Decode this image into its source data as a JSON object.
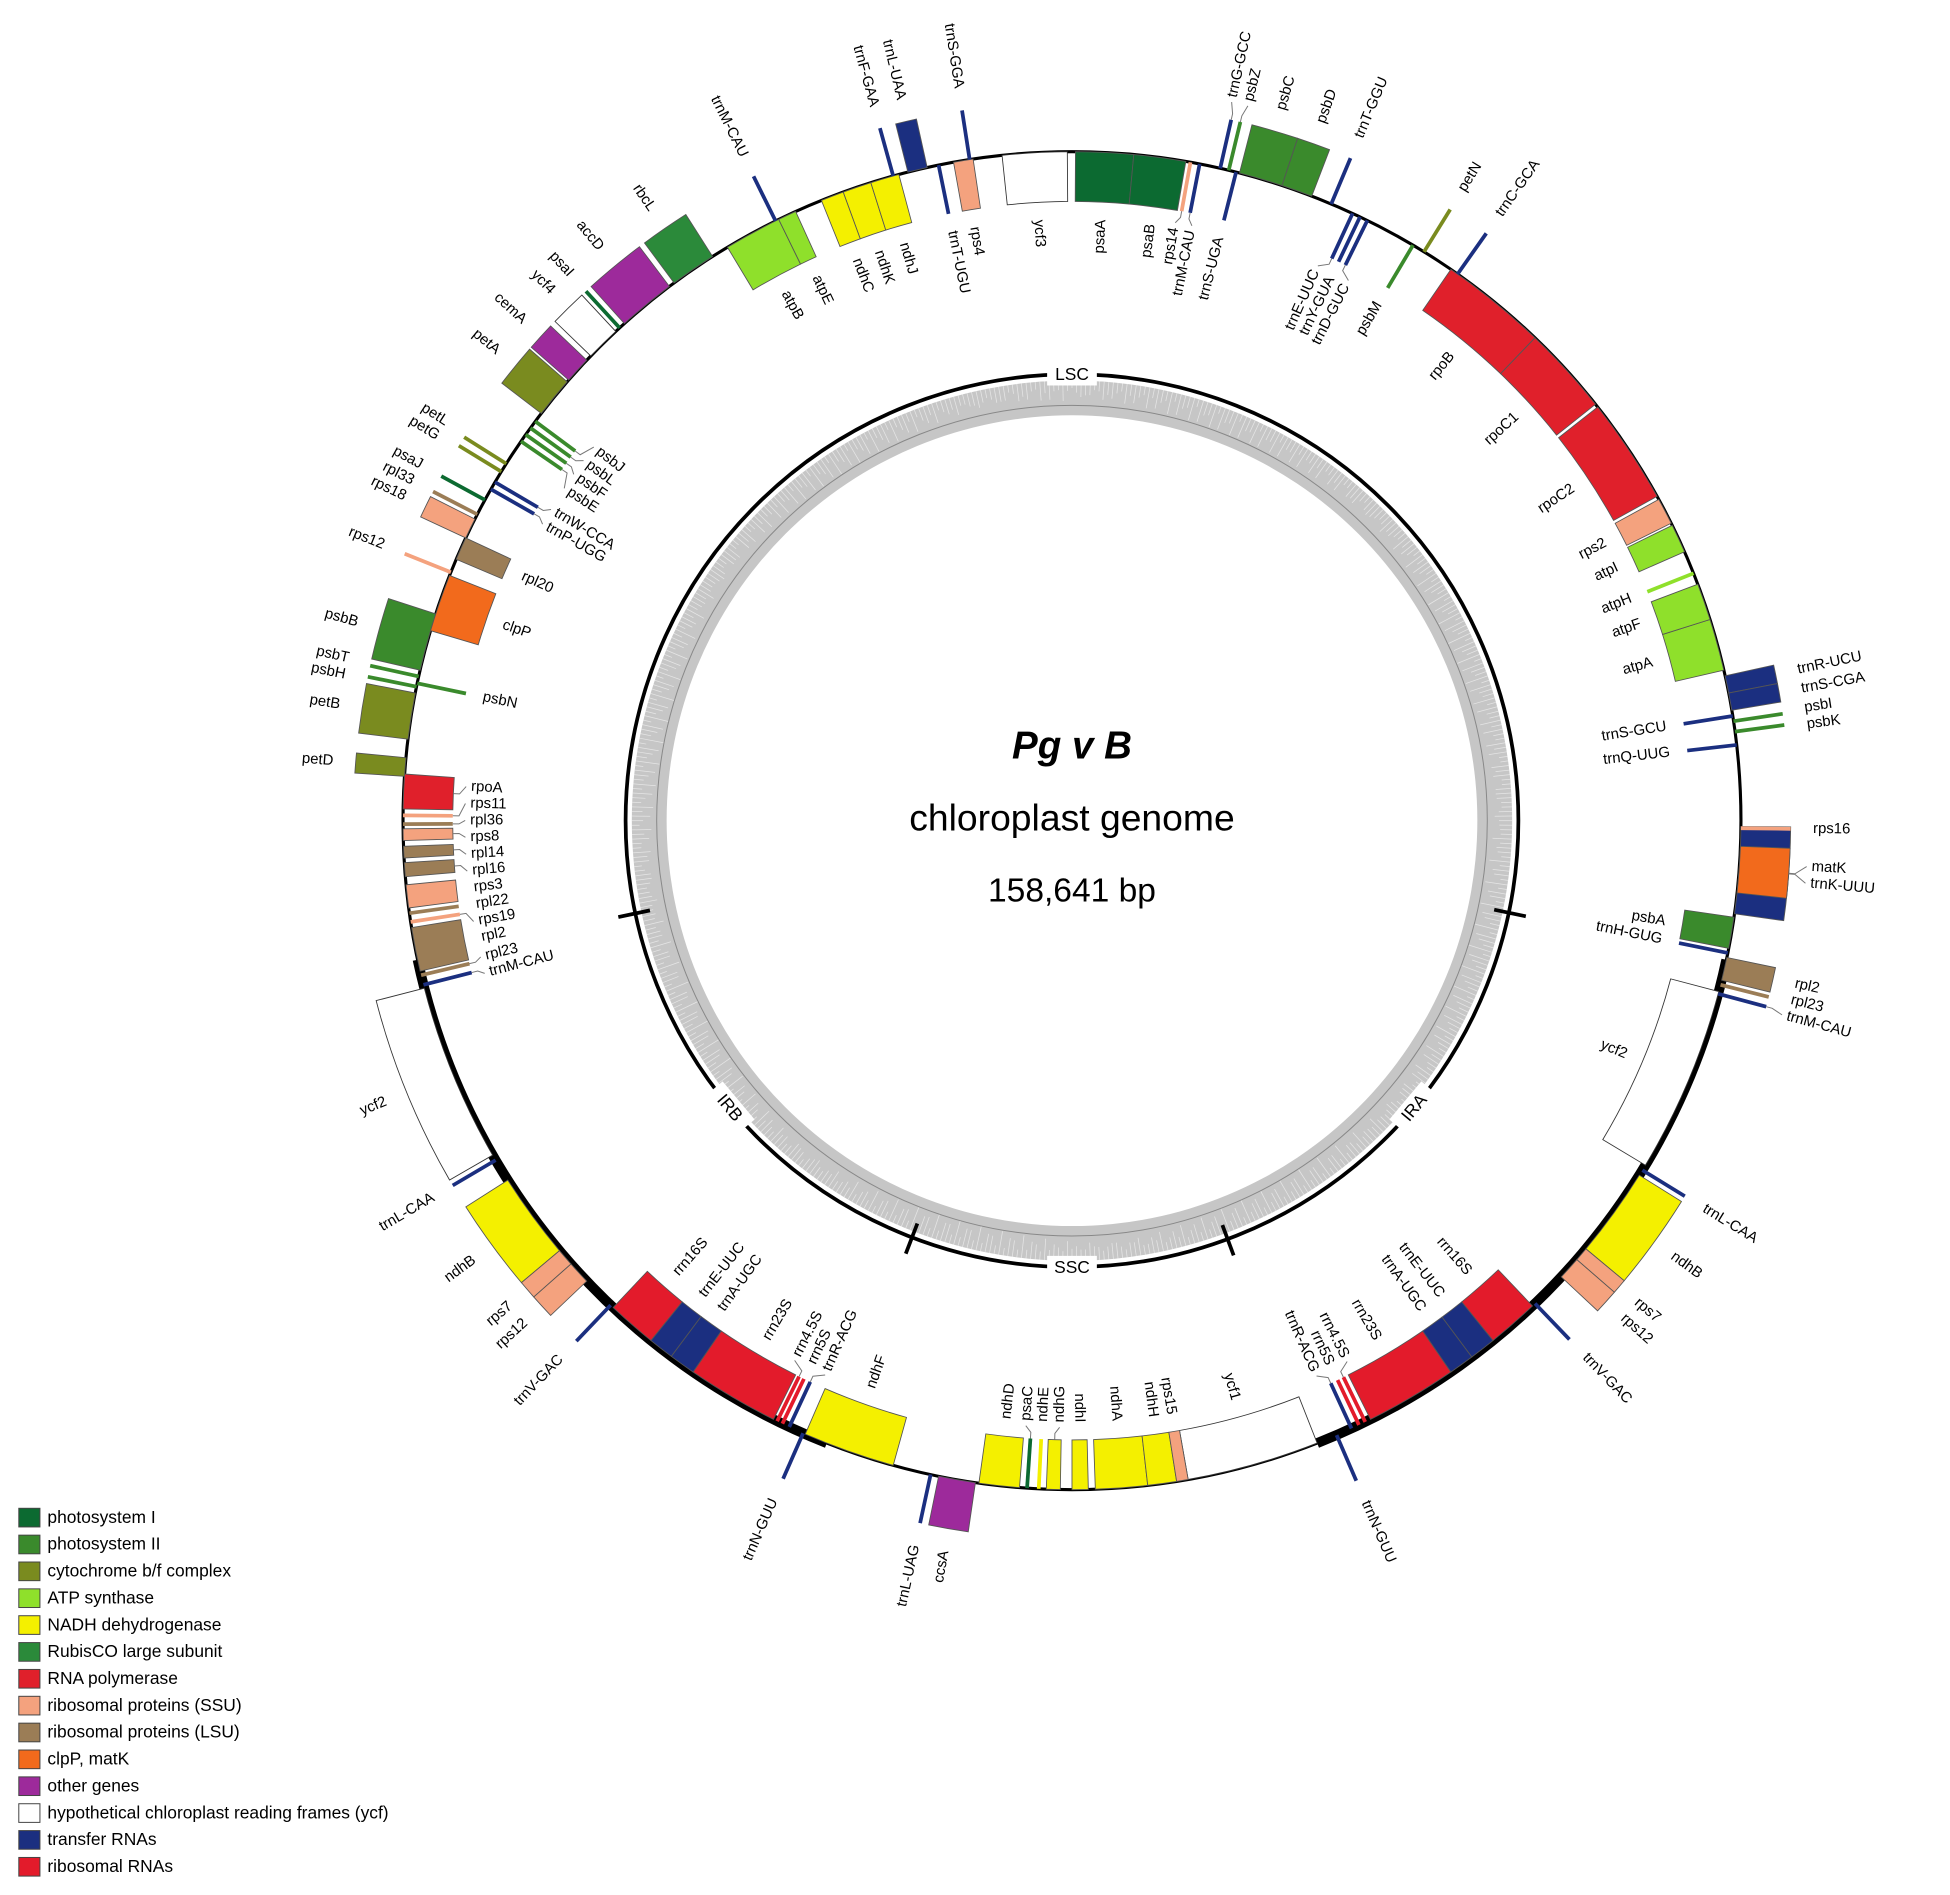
{
  "organism": "Pg v B",
  "title": "chloroplast genome",
  "length": "158,641 bp",
  "regions": [
    "LSC",
    "IRA",
    "SSC",
    "IRB"
  ],
  "legend": [
    {
      "label": "photosystem I",
      "color": "#0c6a31",
      "genes": [
        "psaA",
        "psaB",
        "psaC",
        "psaI",
        "psaJ"
      ]
    },
    {
      "label": "photosystem II",
      "color": "#3a8a2c",
      "genes": [
        "psbZ",
        "psbC",
        "psbD",
        "psbM",
        "psbI",
        "psbK",
        "psbA",
        "psbN",
        "psbH",
        "psbT",
        "psbB",
        "psbE",
        "psbF",
        "psbL",
        "psbJ"
      ]
    },
    {
      "label": "cytochrome b/f complex",
      "color": "#7a8b1f",
      "genes": [
        "petN",
        "petD",
        "petB",
        "petG",
        "petL",
        "petA"
      ]
    },
    {
      "label": "ATP synthase",
      "color": "#8fe02b",
      "genes": [
        "atpA",
        "atpF",
        "atpH",
        "atpI",
        "atpB",
        "atpE"
      ]
    },
    {
      "label": "NADH dehydrogenase",
      "color": "#f4f000",
      "genes": [
        "ndhB",
        "ndhI",
        "ndhA",
        "ndhH",
        "ndhG",
        "ndhE",
        "ndhD",
        "ndhF",
        "ndhB",
        "ndhC",
        "ndhK",
        "ndhJ"
      ]
    },
    {
      "label": "RubisCO large subunit",
      "color": "#2b8a3a",
      "genes": [
        "rbcL"
      ]
    },
    {
      "label": "RNA polymerase",
      "color": "#e0202b",
      "genes": [
        "rpoB",
        "rpoC1",
        "rpoC2",
        "rpoA"
      ]
    },
    {
      "label": "ribosomal proteins (SSU)",
      "color": "#f4a27e",
      "genes": [
        "rps14",
        "rps2",
        "rps16",
        "rps7",
        "rps12",
        "rps15",
        "rps12",
        "rps7",
        "rps19",
        "rps3",
        "rps8",
        "rps11",
        "rps12",
        "rps18",
        "rps4"
      ]
    },
    {
      "label": "ribosomal proteins (LSU)",
      "color": "#9b7d56",
      "genes": [
        "rpl2",
        "rpl23",
        "rpl23",
        "rpl2",
        "rpl22",
        "rpl16",
        "rpl14",
        "rpl36",
        "rpl20",
        "rpl33"
      ]
    },
    {
      "label": "clpP, matK",
      "color": "#f26a1c",
      "genes": [
        "matK",
        "clpP"
      ]
    },
    {
      "label": "other genes",
      "color": "#9d2a9b",
      "genes": [
        "ccsA",
        "cemA",
        "accD"
      ]
    },
    {
      "label": "hypothetical chloroplast reading frames (ycf)",
      "color": "#ffffff",
      "genes": [
        "ycf2",
        "ycf1",
        "ycf2",
        "ycf4",
        "ycf3"
      ]
    },
    {
      "label": "transfer RNAs",
      "color": "#1b2f80",
      "genes": [
        "trnM-CAU",
        "trnG-GCC",
        "trnS-UGA",
        "trnT-GGU",
        "trnE-UUC",
        "trnY-GUA",
        "trnD-GUC",
        "trnC-GCA",
        "trnR-UCU",
        "trnS-CGA",
        "trnS-GCU",
        "trnQ-UUG",
        "trnK-UUU",
        "trnH-GUG",
        "trnM-CAU",
        "trnL-CAA",
        "trnV-GAC",
        "trnA-UGC",
        "trnE-UUC",
        "trnR-ACG",
        "trnN-GUU",
        "trnL-UAG",
        "trnN-GUU",
        "trnR-ACG",
        "trnA-UGC",
        "trnE-UUC",
        "trnV-GAC",
        "trnL-CAA",
        "trnM-CAU",
        "trnP-UGG",
        "trnW-CCA",
        "trnM-CAU",
        "trnF-GAA",
        "trnL-UAA",
        "trnT-UGU",
        "trnS-GGA"
      ]
    },
    {
      "label": "ribosomal RNAs",
      "color": "#e31b2b",
      "genes": [
        "rrn16S",
        "rrn23S",
        "rrn4.5S",
        "rrn5S",
        "rrn5S",
        "rrn4.5S",
        "rrn23S",
        "rrn16S"
      ]
    }
  ]
}
